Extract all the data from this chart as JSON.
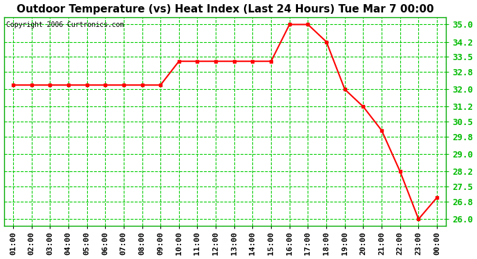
{
  "title": "Outdoor Temperature (vs) Heat Index (Last 24 Hours) Tue Mar 7 00:00",
  "copyright": "Copyright 2006 Curtronics.com",
  "x_labels": [
    "01:00",
    "02:00",
    "03:00",
    "04:00",
    "05:00",
    "06:00",
    "07:00",
    "08:00",
    "09:00",
    "10:00",
    "11:00",
    "12:00",
    "13:00",
    "14:00",
    "15:00",
    "16:00",
    "17:00",
    "18:00",
    "19:00",
    "20:00",
    "21:00",
    "22:00",
    "23:00",
    "00:00"
  ],
  "y_values": [
    32.2,
    32.2,
    32.2,
    32.2,
    32.2,
    32.2,
    32.2,
    32.2,
    32.2,
    33.3,
    33.3,
    33.3,
    33.3,
    33.3,
    33.3,
    35.0,
    35.0,
    34.2,
    32.0,
    31.2,
    30.1,
    28.2,
    26.0,
    27.0
  ],
  "ylim_min": 25.7,
  "ylim_max": 35.35,
  "yticks": [
    26.0,
    26.8,
    27.5,
    28.2,
    29.0,
    29.8,
    30.5,
    31.2,
    32.0,
    32.8,
    33.5,
    34.2,
    35.0
  ],
  "line_color": "red",
  "marker": "s",
  "marker_color": "red",
  "marker_size": 3,
  "plot_bg_color": "white",
  "fig_bg_color": "white",
  "grid_color": "#00cc00",
  "grid_linestyle": "--",
  "grid_linewidth": 0.8,
  "title_color": "black",
  "copyright_color": "black",
  "x_tick_color": "black",
  "y_tick_color": "#00bb00",
  "title_fontsize": 11,
  "copyright_fontsize": 7,
  "tick_fontsize": 8,
  "y_tick_fontsize": 9,
  "border_color": "#00aa00"
}
